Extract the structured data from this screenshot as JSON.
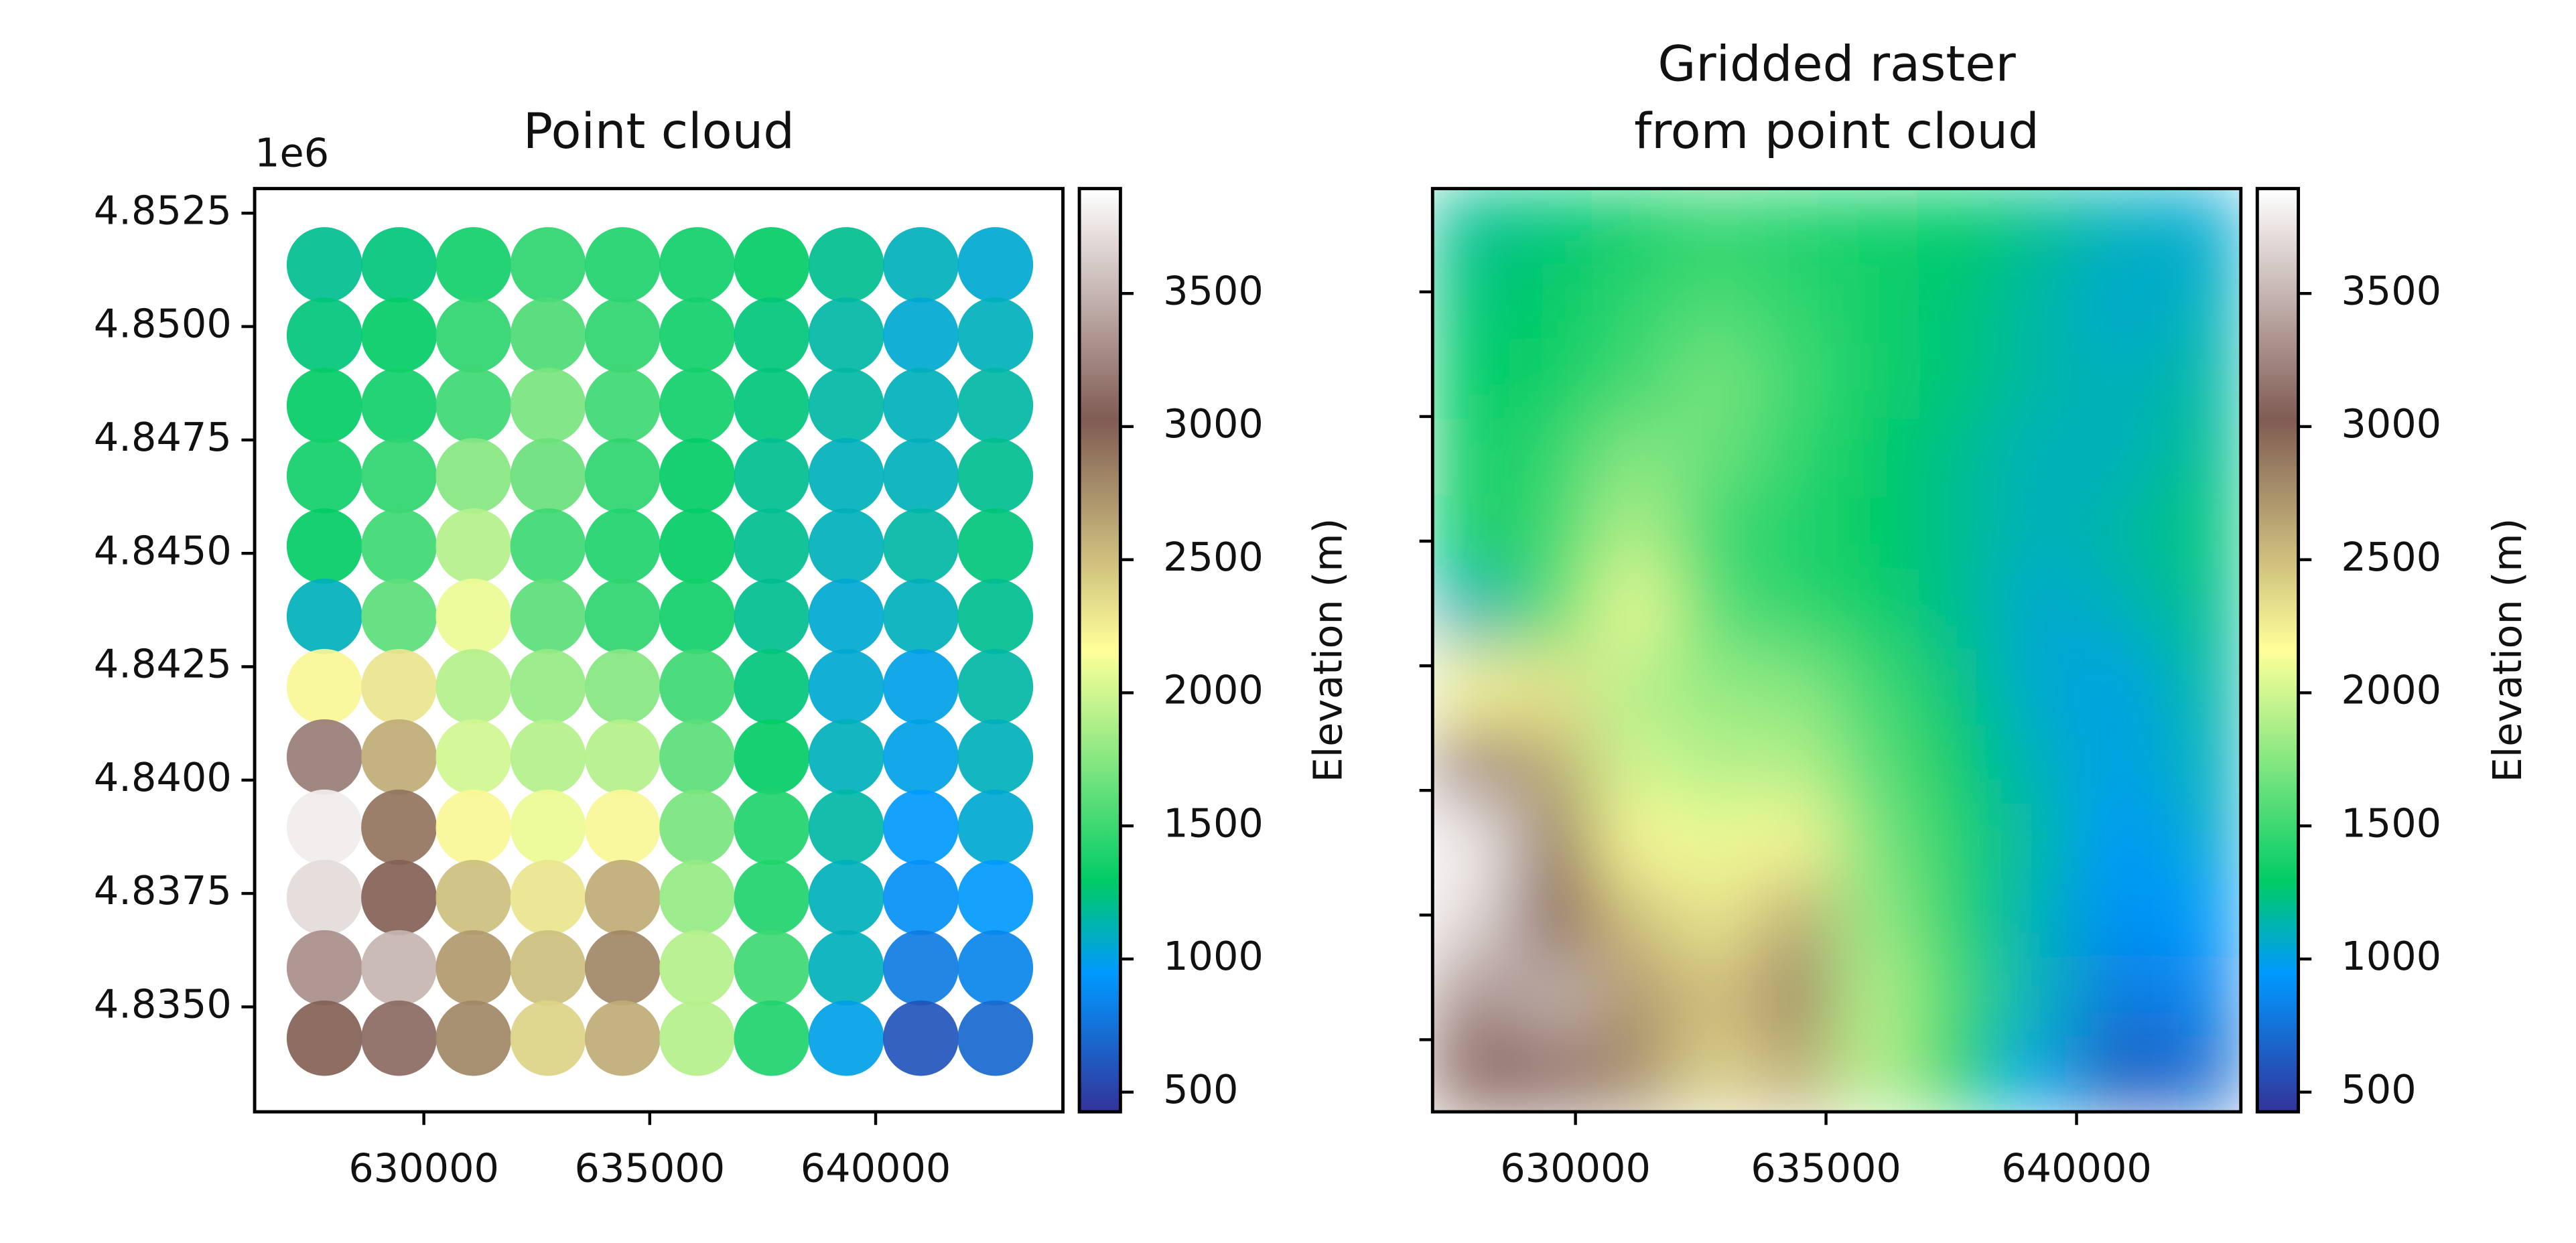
{
  "chart_data": [
    {
      "type": "scatter",
      "title": "Point cloud",
      "x": [
        627800,
        629450,
        631100,
        632750,
        634400,
        636050,
        637700,
        639350,
        641000,
        642650,
        627800,
        629450,
        631100,
        632750,
        634400,
        636050,
        637700,
        639350,
        641000,
        642650,
        627800,
        629450,
        631100,
        632750,
        634400,
        636050,
        637700,
        639350,
        641000,
        642650,
        627800,
        629450,
        631100,
        632750,
        634400,
        636050,
        637700,
        639350,
        641000,
        642650,
        627800,
        629450,
        631100,
        632750,
        634400,
        636050,
        637700,
        639350,
        641000,
        642650,
        627800,
        629450,
        631100,
        632750,
        634400,
        636050,
        637700,
        639350,
        641000,
        642650,
        627800,
        629450,
        631100,
        632750,
        634400,
        636050,
        637700,
        639350,
        641000,
        642650,
        627800,
        629450,
        631100,
        632750,
        634400,
        636050,
        637700,
        639350,
        641000,
        642650,
        627800,
        629450,
        631100,
        632750,
        634400,
        636050,
        637700,
        639350,
        641000,
        642650,
        627800,
        629450,
        631100,
        632750,
        634400,
        636050,
        637700,
        639350,
        641000,
        642650,
        627800,
        629450,
        631100,
        632750,
        634400,
        636050,
        637700,
        639350,
        641000,
        642650,
        627800,
        629450,
        631100,
        632750,
        634400,
        636050,
        637700,
        639350,
        641000,
        642650
      ],
      "y": [
        4851360,
        4851360,
        4851360,
        4851360,
        4851360,
        4851360,
        4851360,
        4851360,
        4851360,
        4851360,
        4849810,
        4849810,
        4849810,
        4849810,
        4849810,
        4849810,
        4849810,
        4849810,
        4849810,
        4849810,
        4848260,
        4848260,
        4848260,
        4848260,
        4848260,
        4848260,
        4848260,
        4848260,
        4848260,
        4848260,
        4846710,
        4846710,
        4846710,
        4846710,
        4846710,
        4846710,
        4846710,
        4846710,
        4846710,
        4846710,
        4845160,
        4845160,
        4845160,
        4845160,
        4845160,
        4845160,
        4845160,
        4845160,
        4845160,
        4845160,
        4843610,
        4843610,
        4843610,
        4843610,
        4843610,
        4843610,
        4843610,
        4843610,
        4843610,
        4843610,
        4842060,
        4842060,
        4842060,
        4842060,
        4842060,
        4842060,
        4842060,
        4842060,
        4842060,
        4842060,
        4840510,
        4840510,
        4840510,
        4840510,
        4840510,
        4840510,
        4840510,
        4840510,
        4840510,
        4840510,
        4838960,
        4838960,
        4838960,
        4838960,
        4838960,
        4838960,
        4838960,
        4838960,
        4838960,
        4838960,
        4837410,
        4837410,
        4837410,
        4837410,
        4837410,
        4837410,
        4837410,
        4837410,
        4837410,
        4837410,
        4835860,
        4835860,
        4835860,
        4835860,
        4835860,
        4835860,
        4835860,
        4835860,
        4835860,
        4835860,
        4834310,
        4834310,
        4834310,
        4834310,
        4834310,
        4834310,
        4834310,
        4834310,
        4834310,
        4834310
      ],
      "values": [
        1200,
        1250,
        1350,
        1450,
        1400,
        1350,
        1300,
        1200,
        1100,
        1050,
        1250,
        1300,
        1450,
        1550,
        1450,
        1350,
        1250,
        1150,
        1050,
        1100,
        1300,
        1350,
        1500,
        1700,
        1500,
        1350,
        1250,
        1150,
        1100,
        1150,
        1350,
        1450,
        1750,
        1650,
        1450,
        1300,
        1200,
        1100,
        1100,
        1200,
        1300,
        1500,
        1900,
        1500,
        1400,
        1300,
        1200,
        1100,
        1150,
        1250,
        1100,
        1600,
        2100,
        1600,
        1450,
        1350,
        1200,
        1050,
        1100,
        1200,
        2200,
        2300,
        1900,
        1800,
        1750,
        1500,
        1250,
        1050,
        1000,
        1150,
        3200,
        2600,
        2000,
        1900,
        1900,
        1600,
        1300,
        1100,
        1000,
        1100,
        3800,
        2900,
        2200,
        2100,
        2200,
        1700,
        1400,
        1150,
        950,
        1050,
        3700,
        3000,
        2500,
        2300,
        2600,
        1800,
        1400,
        1100,
        900,
        950,
        3300,
        3500,
        2700,
        2500,
        2800,
        1900,
        1500,
        1100,
        800,
        850,
        3000,
        3100,
        2800,
        2400,
        2600,
        1900,
        1400,
        1000,
        600,
        700
      ],
      "xlim": [
        626255,
        644145
      ],
      "ylim": [
        4832686,
        4853042
      ],
      "xticks": [
        630000,
        635000,
        640000
      ],
      "yticks": [
        {
          "value": 4835000,
          "label": "4.8350"
        },
        {
          "value": 4837500,
          "label": "4.8375"
        },
        {
          "value": 4840000,
          "label": "4.8400"
        },
        {
          "value": 4842500,
          "label": "4.8425"
        },
        {
          "value": 4845000,
          "label": "4.8450"
        },
        {
          "value": 4847500,
          "label": "4.8475"
        },
        {
          "value": 4850000,
          "label": "4.8500"
        },
        {
          "value": 4852500,
          "label": "4.8525"
        }
      ],
      "y_offset_label": "1e6",
      "colormap": "terrain",
      "clim": [
        426,
        3894
      ],
      "colorbar_ticks": [
        500,
        1000,
        1500,
        2000,
        2500,
        3000,
        3500
      ],
      "colorbar_label": "Elevation (m)"
    },
    {
      "type": "raster",
      "title": [
        "Gridded raster",
        "from point cloud"
      ],
      "z": [
        [
          1200,
          1250,
          1350,
          1450,
          1400,
          1350,
          1300,
          1200,
          1100,
          1050
        ],
        [
          1250,
          1300,
          1450,
          1550,
          1450,
          1350,
          1250,
          1150,
          1050,
          1100
        ],
        [
          1300,
          1350,
          1500,
          1700,
          1500,
          1350,
          1250,
          1150,
          1100,
          1150
        ],
        [
          1350,
          1450,
          1750,
          1650,
          1450,
          1300,
          1200,
          1100,
          1100,
          1200
        ],
        [
          1300,
          1500,
          1900,
          1500,
          1400,
          1300,
          1200,
          1100,
          1150,
          1250
        ],
        [
          1100,
          1600,
          2100,
          1600,
          1450,
          1350,
          1200,
          1050,
          1100,
          1200
        ],
        [
          2200,
          2300,
          1900,
          1800,
          1750,
          1500,
          1250,
          1050,
          1000,
          1150
        ],
        [
          3200,
          2600,
          2000,
          1900,
          1900,
          1600,
          1300,
          1100,
          1000,
          1100
        ],
        [
          3800,
          2900,
          2200,
          2100,
          2200,
          1700,
          1400,
          1150,
          950,
          1050
        ],
        [
          3700,
          3000,
          2500,
          2300,
          2600,
          1800,
          1400,
          1100,
          900,
          950
        ],
        [
          3300,
          3500,
          2700,
          2500,
          2800,
          1900,
          1500,
          1100,
          800,
          850
        ],
        [
          3000,
          3100,
          2800,
          2400,
          2600,
          1900,
          1400,
          1000,
          600,
          700
        ]
      ],
      "xlim": [
        627148,
        643279
      ],
      "ylim": [
        4833553,
        4852072
      ],
      "xticks": [
        630000,
        635000,
        640000
      ],
      "yticks": [
        4835000,
        4837500,
        4840000,
        4842500,
        4845000,
        4847500,
        4850000
      ],
      "ytick_labels": false,
      "colormap": "terrain",
      "clim": [
        426,
        3894
      ],
      "colorbar_ticks": [
        500,
        1000,
        1500,
        2000,
        2500,
        3000,
        3500
      ],
      "colorbar_label": "Elevation (m)"
    }
  ]
}
